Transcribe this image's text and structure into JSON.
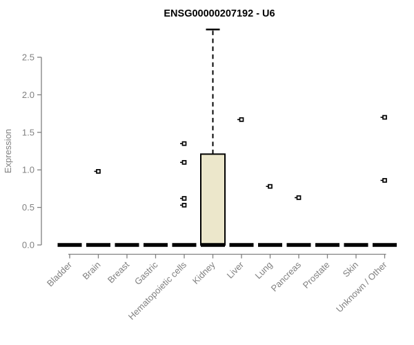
{
  "chart_data": {
    "type": "boxplot",
    "title": "ENSG00000207192 - U6",
    "xlabel": "",
    "ylabel": "Expression",
    "ylim": [
      0,
      2.9
    ],
    "yticks": [
      0.0,
      0.5,
      1.0,
      1.5,
      2.0,
      2.5
    ],
    "grid": false,
    "legend": null,
    "categories": [
      "Bladder",
      "Brain",
      "Breast",
      "Gastric",
      "Hematopoietic cells",
      "Kidney",
      "Liver",
      "Lung",
      "Pancreas",
      "Prostate",
      "Skin",
      "Unknown / Other"
    ],
    "boxes": [
      {
        "category": "Bladder",
        "min": 0,
        "q1": 0,
        "median": 0,
        "q3": 0,
        "max": 0,
        "outliers": []
      },
      {
        "category": "Brain",
        "min": 0,
        "q1": 0,
        "median": 0,
        "q3": 0,
        "max": 0,
        "outliers": [
          0.98
        ]
      },
      {
        "category": "Breast",
        "min": 0,
        "q1": 0,
        "median": 0,
        "q3": 0,
        "max": 0,
        "outliers": []
      },
      {
        "category": "Gastric",
        "min": 0,
        "q1": 0,
        "median": 0,
        "q3": 0,
        "max": 0,
        "outliers": []
      },
      {
        "category": "Hematopoietic cells",
        "min": 0,
        "q1": 0,
        "median": 0,
        "q3": 0,
        "max": 0,
        "outliers": [
          1.35,
          1.1,
          0.62,
          0.53
        ]
      },
      {
        "category": "Kidney",
        "min": 0,
        "q1": 0,
        "median": 0,
        "q3": 1.21,
        "max": 2.87,
        "outliers": []
      },
      {
        "category": "Liver",
        "min": 0,
        "q1": 0,
        "median": 0,
        "q3": 0,
        "max": 0,
        "outliers": [
          1.67
        ]
      },
      {
        "category": "Lung",
        "min": 0,
        "q1": 0,
        "median": 0,
        "q3": 0,
        "max": 0,
        "outliers": [
          0.78
        ]
      },
      {
        "category": "Pancreas",
        "min": 0,
        "q1": 0,
        "median": 0,
        "q3": 0,
        "max": 0,
        "outliers": [
          0.63
        ]
      },
      {
        "category": "Prostate",
        "min": 0,
        "q1": 0,
        "median": 0,
        "q3": 0,
        "max": 0,
        "outliers": []
      },
      {
        "category": "Skin",
        "min": 0,
        "q1": 0,
        "median": 0,
        "q3": 0,
        "max": 0,
        "outliers": []
      },
      {
        "category": "Unknown / Other",
        "min": 0,
        "q1": 0,
        "median": 0,
        "q3": 0,
        "max": 0,
        "outliers": [
          1.7,
          0.86
        ]
      }
    ],
    "colors": {
      "background": "#ffffff",
      "axis": "#808080",
      "tick_label": "#808080",
      "title": "#000000",
      "box_fill": "#ece7cb",
      "box_stroke": "#000000",
      "outlier_fill": "#ffffff",
      "outlier_stroke": "#000000"
    }
  }
}
